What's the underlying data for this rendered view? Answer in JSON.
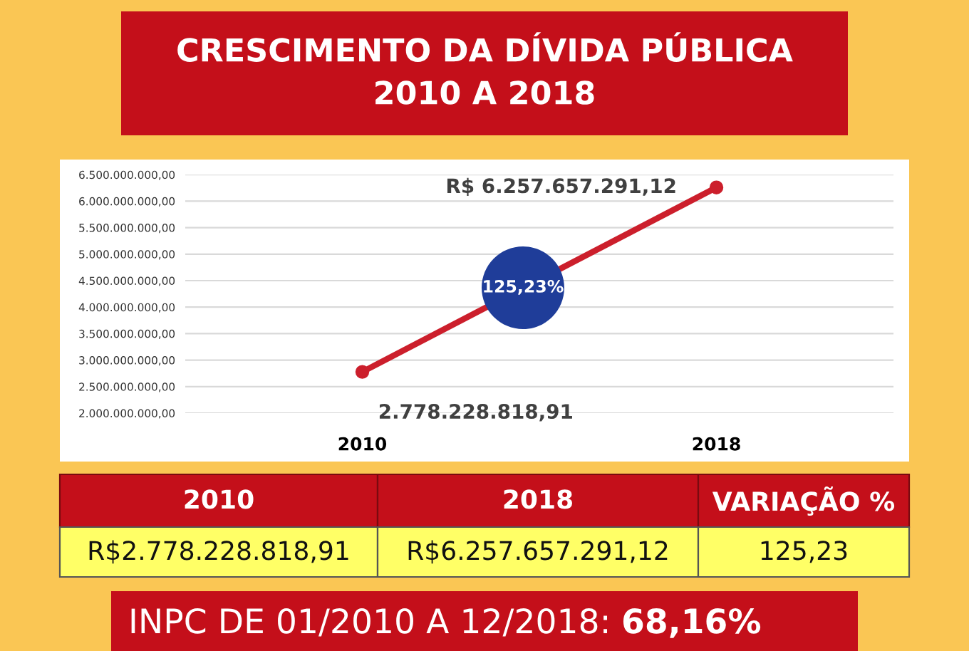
{
  "chart_data": {
    "type": "line",
    "title": "CRESCIMENTO DA DÍVIDA PÚBLICA\n2010 A 2018",
    "categories": [
      "2010",
      "2018"
    ],
    "series": [
      {
        "color": "#cc1f2c",
        "values": [
          2778228818.91,
          6257657291.12
        ]
      }
    ],
    "value_labels": [
      "2.778.228.818,91",
      "R$ 6.257.657.291,12"
    ],
    "ylim": [
      2000000000,
      6500000000
    ],
    "yticks": [
      {
        "value": 2000000000,
        "label": "2.000.000.000,00"
      },
      {
        "value": 2500000000,
        "label": "2.500.000.000,00"
      },
      {
        "value": 3000000000,
        "label": "3.000.000.000,00"
      },
      {
        "value": 3500000000,
        "label": "3.500.000.000,00"
      },
      {
        "value": 4000000000,
        "label": "4.000.000.000,00"
      },
      {
        "value": 4500000000,
        "label": "4.500.000.000,00"
      },
      {
        "value": 5000000000,
        "label": "5.000.000.000,00"
      },
      {
        "value": 5500000000,
        "label": "5.500.000.000,00"
      },
      {
        "value": 6000000000,
        "label": "6.000.000.000,00"
      },
      {
        "value": 6500000000,
        "label": "6.500.000.000,00"
      }
    ],
    "grid": "y",
    "marker": "circle",
    "line_style": "solid",
    "legend": false,
    "annotations": [
      "125,23%",
      "2010",
      "2018",
      "VARIAÇÃO %",
      "R$2.778.228.818,91",
      "R$6.257.657.291,12",
      "125,23",
      "INPC DE 01/2010 A 12/2018: ",
      "68,16%"
    ]
  }
}
